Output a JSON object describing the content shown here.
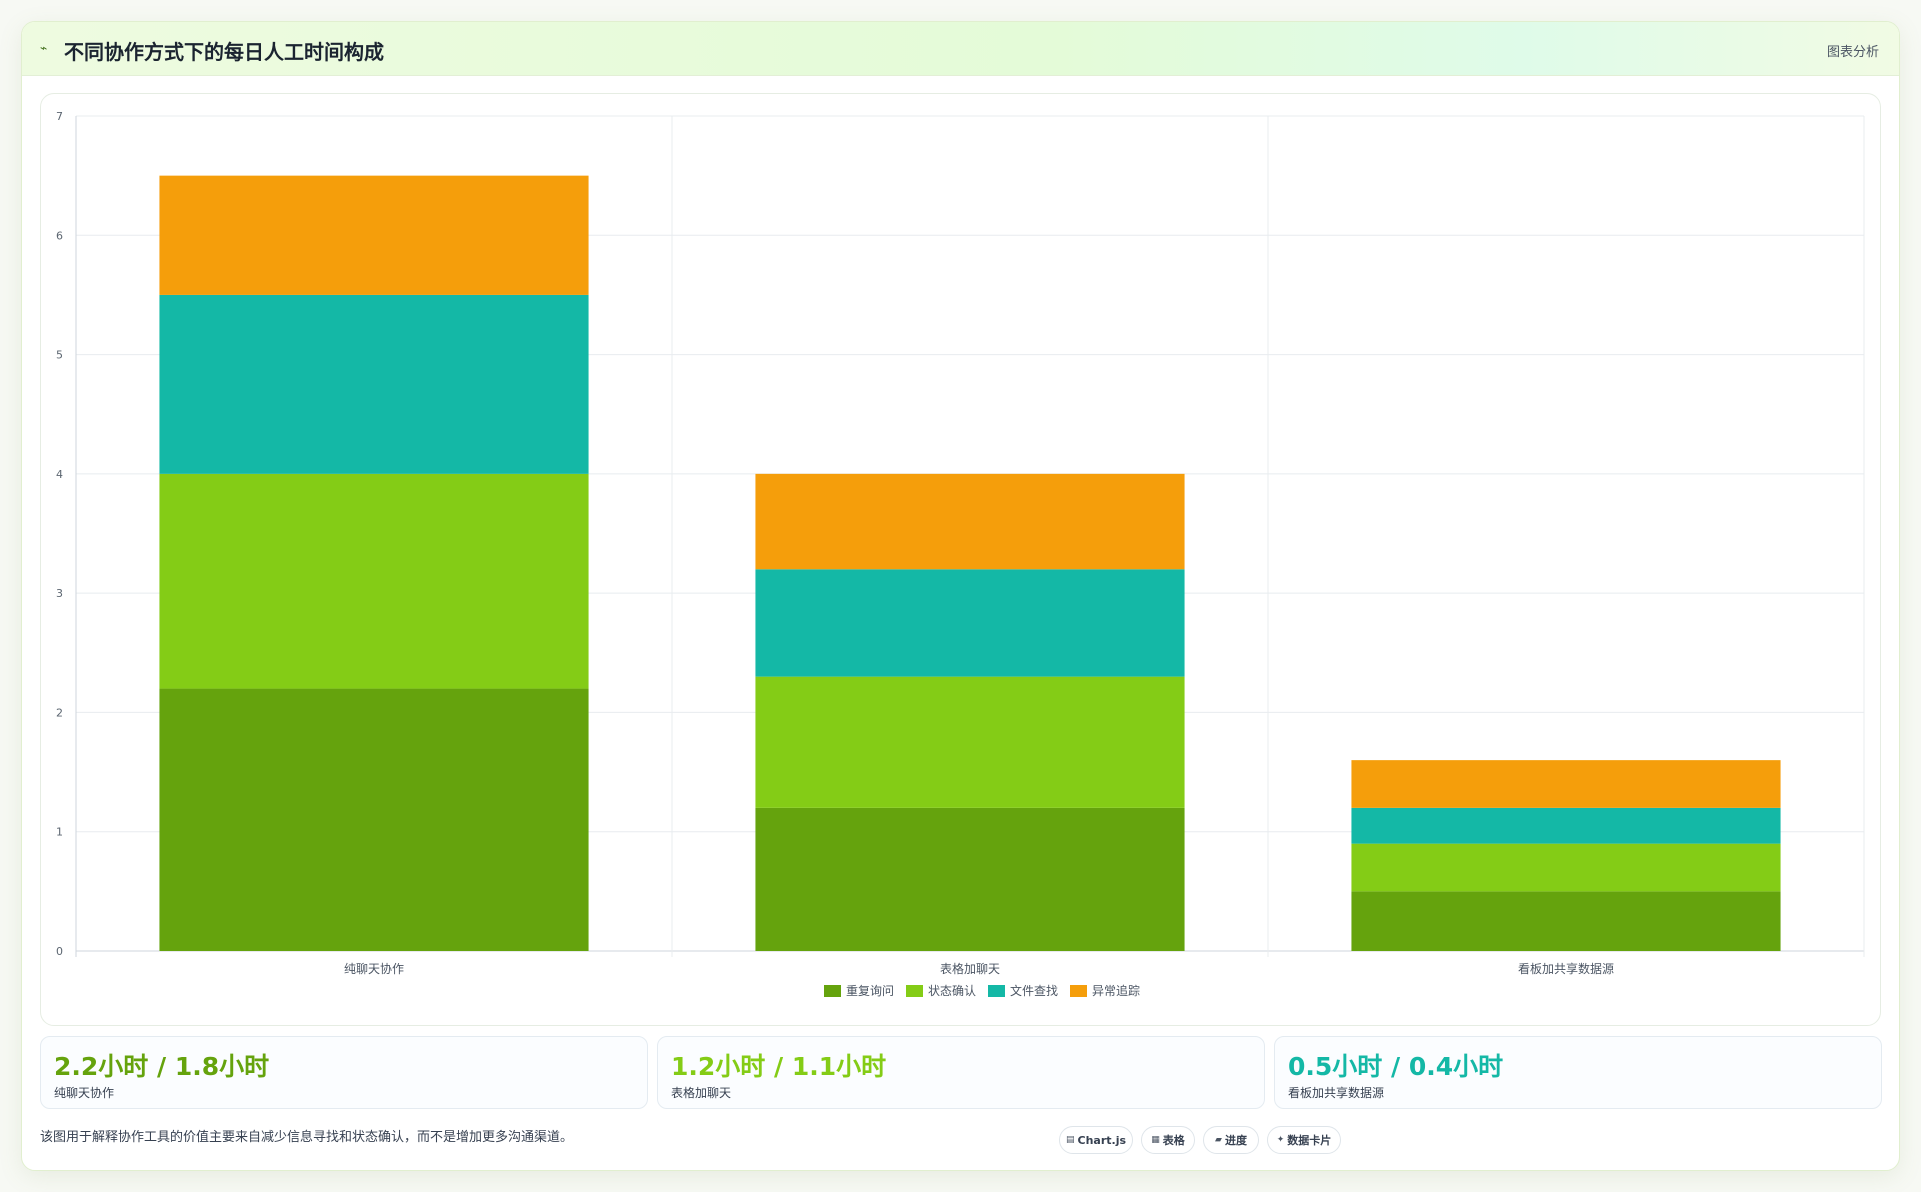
{
  "header": {
    "icon": "chart-line-icon",
    "title": "不同协作方式下的每日人工时间构成",
    "tag": "图表分析"
  },
  "chart_data": {
    "type": "bar",
    "stacked": true,
    "categories": [
      "纯聊天协作",
      "表格加聊天",
      "看板加共享数据源"
    ],
    "series": [
      {
        "name": "重复询问",
        "color": "#65a30d",
        "values": [
          2.2,
          1.2,
          0.5
        ]
      },
      {
        "name": "状态确认",
        "color": "#84cc16",
        "values": [
          1.8,
          1.1,
          0.4
        ]
      },
      {
        "name": "文件查找",
        "color": "#14b8a6",
        "values": [
          1.5,
          0.9,
          0.3
        ]
      },
      {
        "name": "异常追踪",
        "color": "#f59e0b",
        "values": [
          1.0,
          0.8,
          0.4
        ]
      }
    ],
    "title": "",
    "xlabel": "",
    "ylabel": "",
    "ylim": [
      0,
      7
    ],
    "yticks": [
      0,
      1,
      2,
      3,
      4,
      5,
      6,
      7
    ],
    "grid": true,
    "legend": "bottom-center"
  },
  "stats": [
    {
      "value": "2.2小时 / 1.8小时",
      "label": "纯聊天协作",
      "color": "#65a30d"
    },
    {
      "value": "1.2小时 / 1.1小时",
      "label": "表格加聊天",
      "color": "#84cc16"
    },
    {
      "value": "0.5小时 / 0.4小时",
      "label": "看板加共享数据源",
      "color": "#14b8a6"
    }
  ],
  "footnote": "该图用于解释协作工具的价值主要来自减少信息寻找和状态确认，而不是增加更多沟通渠道。",
  "chips": [
    {
      "icon": "chart-icon",
      "glyph": "▤",
      "label": "Chart.js"
    },
    {
      "icon": "table-icon",
      "glyph": "▦",
      "label": "表格"
    },
    {
      "icon": "progress-icon",
      "glyph": "▰",
      "label": "进度"
    },
    {
      "icon": "sparkle-icon",
      "glyph": "✦",
      "label": "数据卡片"
    }
  ]
}
